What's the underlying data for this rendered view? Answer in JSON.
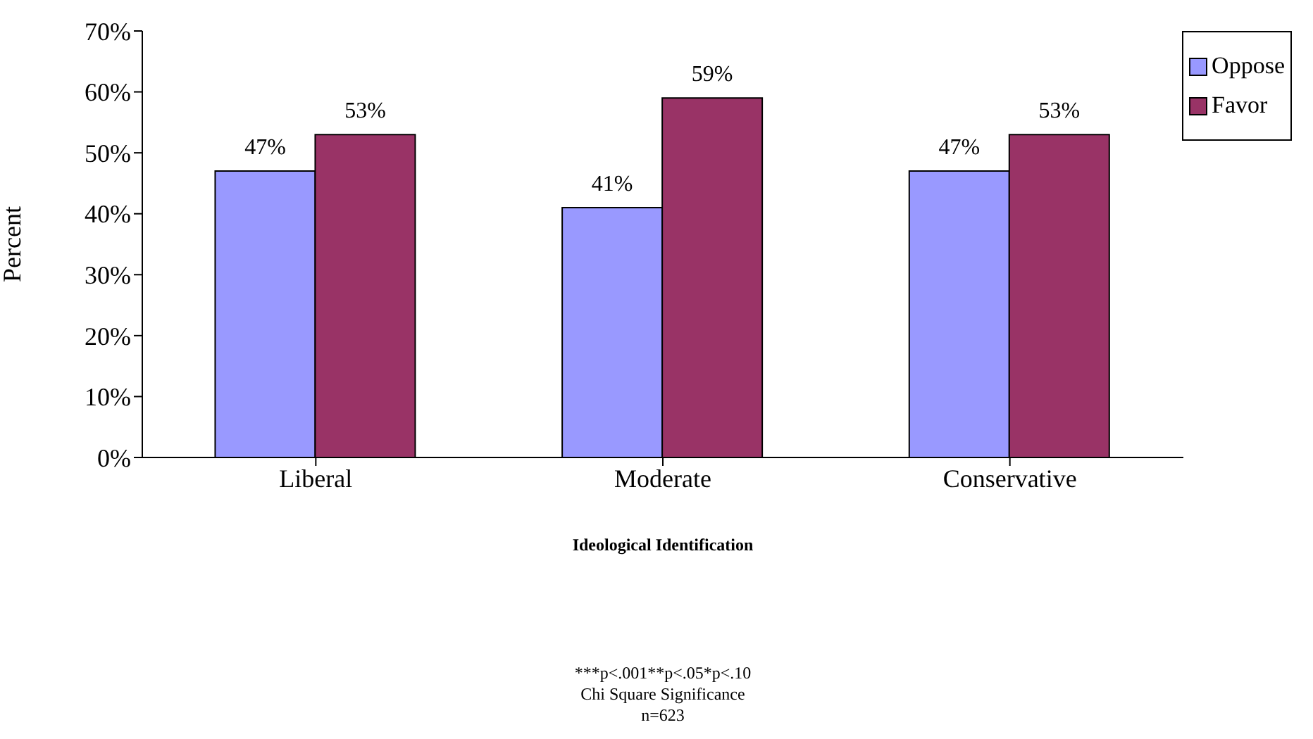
{
  "chart_data": {
    "type": "bar",
    "ylabel": "Percent",
    "xlabel": "Ideological Identification",
    "annotations": [
      "***p<.001**p<.05*p<.10",
      "Chi Square Significance",
      "n=623"
    ],
    "categories": [
      "Liberal",
      "Moderate",
      "Conservative"
    ],
    "series": [
      {
        "name": "Oppose",
        "color": "#9999ff",
        "values": [
          47,
          41,
          47
        ],
        "value_labels": [
          "47%",
          "41%",
          "47%"
        ]
      },
      {
        "name": "Favor",
        "color": "#993366",
        "values": [
          53,
          59,
          53
        ],
        "value_labels": [
          "53%",
          "59%",
          "53%"
        ]
      }
    ],
    "ylim": [
      0,
      70
    ],
    "yticks": [
      {
        "value": 0,
        "label": "0%"
      },
      {
        "value": 10,
        "label": "10%"
      },
      {
        "value": 20,
        "label": "20%"
      },
      {
        "value": 30,
        "label": "30%"
      },
      {
        "value": 40,
        "label": "40%"
      },
      {
        "value": 50,
        "label": "50%"
      },
      {
        "value": 60,
        "label": "60%"
      },
      {
        "value": 70,
        "label": "70%"
      }
    ],
    "legend": "top right",
    "grid": false
  }
}
